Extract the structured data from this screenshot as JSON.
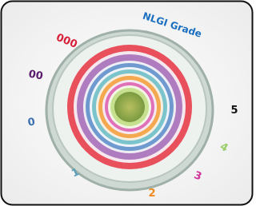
{
  "title": "NLGI Grade",
  "grades": [
    {
      "label": "000",
      "color": "#d8203a"
    },
    {
      "label": "00",
      "color": "#5a1a6e"
    },
    {
      "label": "0",
      "color": "#3a6fb0"
    },
    {
      "label": "1",
      "color": "#5aa0b8"
    },
    {
      "label": "2",
      "color": "#f08a20"
    },
    {
      "label": "3",
      "color": "#d0309a"
    },
    {
      "label": "4",
      "color": "#9acd6a"
    },
    {
      "label": "5",
      "color": "#111111"
    }
  ]
}
